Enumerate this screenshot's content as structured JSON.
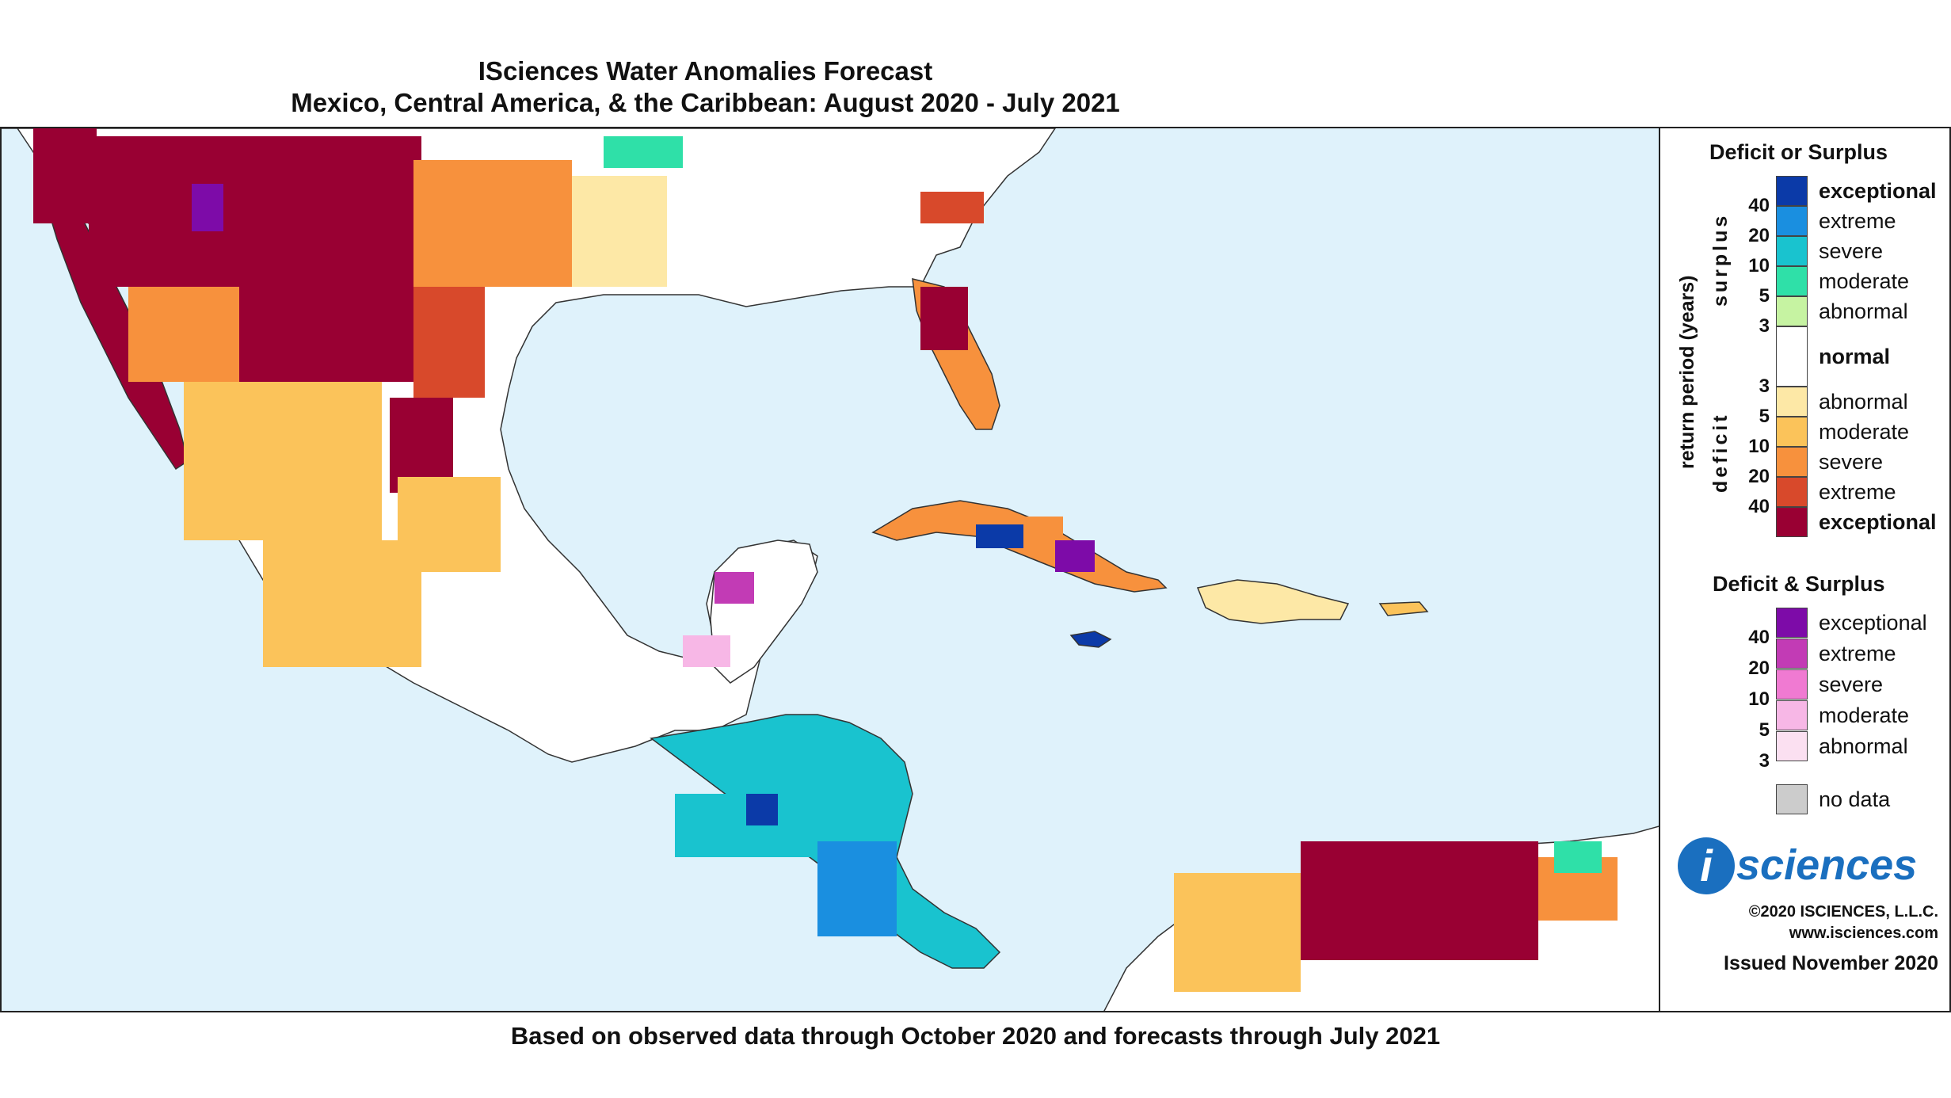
{
  "title": {
    "line1": "ISciences Water Anomalies Forecast",
    "line2": "Mexico, Central America, & the Caribbean: August 2020 - July 2021"
  },
  "footer": "Based on observed data through October 2020 and forecasts through July 2021",
  "legend": {
    "section1_title": "Deficit or Surplus",
    "axis_label": "return period (years)",
    "surplus_label": "surplus",
    "deficit_label": "deficit",
    "surplus_classes": [
      {
        "label": "exceptional",
        "color": "#0b3aa8",
        "bold": true
      },
      {
        "label": "extreme",
        "color": "#1a8fe0",
        "bold": false
      },
      {
        "label": "severe",
        "color": "#19c3cf",
        "bold": false
      },
      {
        "label": "moderate",
        "color": "#2fe0a8",
        "bold": false
      },
      {
        "label": "abnormal",
        "color": "#c6f3a2",
        "bold": false
      }
    ],
    "surplus_ticks": [
      "40",
      "20",
      "10",
      "5",
      "3"
    ],
    "normal_label": "normal",
    "normal_color": "#ffffff",
    "deficit_classes": [
      {
        "label": "abnormal",
        "color": "#fde8a6",
        "bold": false
      },
      {
        "label": "moderate",
        "color": "#fbc35a",
        "bold": false
      },
      {
        "label": "severe",
        "color": "#f7913d",
        "bold": false
      },
      {
        "label": "extreme",
        "color": "#d8492b",
        "bold": false
      },
      {
        "label": "exceptional",
        "color": "#990033",
        "bold": true
      }
    ],
    "deficit_ticks": [
      "3",
      "5",
      "10",
      "20",
      "40"
    ],
    "section2_title": "Deficit & Surplus",
    "both_classes": [
      {
        "label": "exceptional",
        "color": "#7d0ba8"
      },
      {
        "label": "extreme",
        "color": "#c23bb5"
      },
      {
        "label": "severe",
        "color": "#f07ad2"
      },
      {
        "label": "moderate",
        "color": "#f7b7e6"
      },
      {
        "label": "abnormal",
        "color": "#fbe0f1"
      }
    ],
    "both_ticks": [
      "40",
      "20",
      "10",
      "5",
      "3"
    ],
    "nodata_label": "no data",
    "nodata_color": "#cccccc",
    "logo_text": "sciences",
    "logo_i": "i",
    "copyright": "©2020 ISCIENCES, L.L.C.",
    "website": "www.isciences.com",
    "issued": "Issued November 2020"
  },
  "colors": {
    "ocean": "#dff2fb",
    "land": "#ffffff",
    "border": "#333333"
  }
}
